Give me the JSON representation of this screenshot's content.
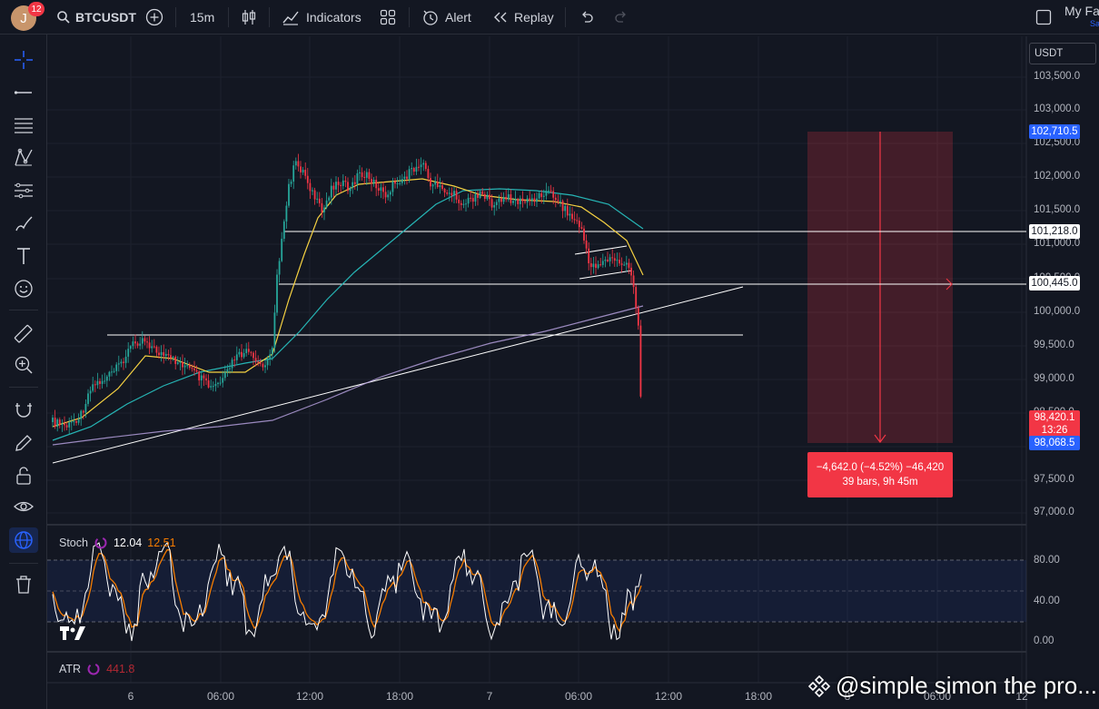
{
  "header": {
    "avatar_letter": "J",
    "notification_count": "12",
    "symbol": "BTCUSDT",
    "interval": "15m",
    "indicators_label": "Indicators",
    "alert_label": "Alert",
    "replay_label": "Replay",
    "favorites_label": "My Fa",
    "favorites_sub": "Sa"
  },
  "currency_selector": "USDT",
  "price_axis": [
    "103,500.0",
    "103,000.0",
    "102,500.0",
    "102,000.0",
    "101,500.0",
    "101,000.0",
    "100,500.0",
    "100,000.0",
    "99,500.0",
    "99,000.0",
    "98,500.0",
    "98,000.0",
    "97,500.0",
    "97,000.0"
  ],
  "price_tags": {
    "target_top": "102,710.5",
    "resistance": "101,218.0",
    "support": "100,445.0",
    "last_price": "98,420.1",
    "countdown": "13:26",
    "target_bottom": "98,068.5"
  },
  "measure": {
    "line1": "−4,642.0 (−4.52%) −46,420",
    "line2": "39 bars, 9h 45m"
  },
  "stoch": {
    "name": "Stoch",
    "k": "12.04",
    "d": "12.51",
    "axis": [
      "80.00",
      "40.00",
      "0.00"
    ]
  },
  "atr": {
    "name": "ATR",
    "value": "441.8"
  },
  "time_axis": [
    "6",
    "06:00",
    "12:00",
    "18:00",
    "7",
    "06:00",
    "12:00",
    "18:00",
    "8",
    "06:00",
    "12"
  ],
  "watermark": "@simple simon the pro...",
  "colors": {
    "background": "#131722",
    "up": "#26a69a",
    "down": "#f23645",
    "accent": "#2962ff",
    "ema_fast": "#f5d142",
    "ema_slow": "#26b5b5",
    "stoch_k": "#ffffff",
    "stoch_d": "#f57c00"
  }
}
